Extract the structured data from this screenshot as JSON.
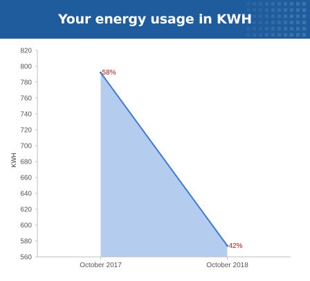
{
  "banner": {
    "title": "Your energy usage in KWH",
    "color": "#1e5c9d"
  },
  "chart_data": {
    "type": "area",
    "title": "Your energy usage in KWH",
    "xlabel": "",
    "ylabel": "KWH",
    "categories": [
      "October 2017",
      "October 2018"
    ],
    "series": [
      {
        "values": [
          792,
          574
        ],
        "data_labels": [
          "58%",
          "42%"
        ]
      }
    ],
    "ylim": [
      560,
      820
    ],
    "yticks": [
      560,
      580,
      600,
      620,
      640,
      660,
      680,
      700,
      720,
      740,
      760,
      780,
      800,
      820
    ],
    "grid": false,
    "fill_color": "#b4cdee",
    "line_color": "#3b78d8",
    "label_color": "#cc1111"
  }
}
